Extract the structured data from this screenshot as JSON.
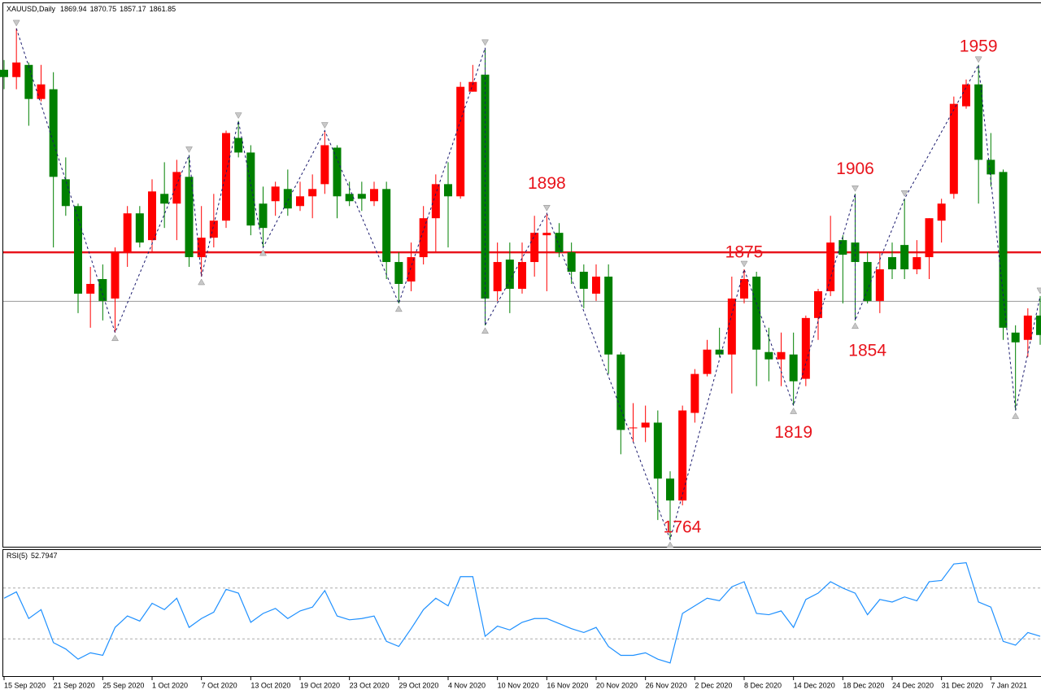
{
  "chart_data": {
    "type": "candlestick",
    "title": "XAUUSD,Daily",
    "quote": [
      1869.94,
      1870.75,
      1857.17,
      1861.85
    ],
    "categories": [
      "15 Sep 2020",
      null,
      null,
      null,
      "21 Sep 2020",
      null,
      null,
      null,
      "25 Sep 2020",
      null,
      null,
      null,
      "1 Oct 2020",
      null,
      null,
      null,
      "7 Oct 2020",
      null,
      null,
      null,
      "13 Oct 2020",
      null,
      null,
      null,
      "19 Oct 2020",
      null,
      null,
      null,
      "23 Oct 2020",
      null,
      null,
      null,
      "29 Oct 2020",
      null,
      null,
      null,
      "4 Nov 2020",
      null,
      null,
      null,
      "10 Nov 2020",
      null,
      null,
      null,
      "16 Nov 2020",
      null,
      null,
      null,
      "20 Nov 2020",
      null,
      null,
      null,
      "26 Nov 2020",
      null,
      null,
      null,
      "2 Dec 2020",
      null,
      null,
      null,
      "8 Dec 2020",
      null,
      null,
      null,
      "14 Dec 2020",
      null,
      null,
      null,
      "18 Dec 2020",
      null,
      null,
      null,
      "24 Dec 2020",
      null,
      null,
      null,
      "31 Dec 2020",
      null,
      null,
      null,
      "7 Jan 2021",
      null,
      null,
      null,
      null
    ],
    "open": [
      1957,
      1954,
      1959,
      1945,
      1949,
      1912,
      1901,
      1865,
      1871,
      1863,
      1882,
      1898,
      1887,
      1906,
      1902,
      1913,
      1880,
      1888,
      1895,
      1929,
      1923,
      1902,
      1903,
      1908,
      1901,
      1905,
      1910,
      1925,
      1906,
      1906,
      1903,
      1908,
      1878,
      1870,
      1880,
      1896,
      1910,
      1905,
      1948,
      1955,
      1866,
      1879,
      1867,
      1878,
      1889,
      1890,
      1882,
      1874,
      1865,
      1872,
      1840,
      1810,
      1810,
      1812,
      1789,
      1780,
      1816,
      1832,
      1842,
      1840,
      1863,
      1872,
      1841,
      1838,
      1840,
      1830,
      1855,
      1866,
      1887,
      1886,
      1878,
      1862,
      1880,
      1885,
      1875,
      1880,
      1895,
      1906,
      1942,
      1951,
      1920,
      1915,
      1849,
      1846,
      1856
    ],
    "high": [
      1961,
      1974,
      1960,
      1959,
      1956,
      1921,
      1902,
      1876,
      1877,
      1884,
      1901,
      1901,
      1912,
      1919,
      1920,
      1922,
      1901,
      1906,
      1932,
      1936,
      1926,
      1909,
      1911,
      1916,
      1911,
      1914,
      1932,
      1926,
      1911,
      1911,
      1911,
      1911,
      1882,
      1886,
      1901,
      1914,
      1919,
      1952,
      1959,
      1966,
      1886,
      1886,
      1886,
      1897,
      1898,
      1894,
      1886,
      1877,
      1877,
      1877,
      1841,
      1820,
      1819,
      1817,
      1792,
      1819,
      1834,
      1846,
      1851,
      1872,
      1875,
      1874,
      1851,
      1849,
      1849,
      1856,
      1867,
      1897,
      1889,
      1906,
      1882,
      1882,
      1886,
      1904,
      1887,
      1896,
      1904,
      1946,
      1953,
      1959,
      1931,
      1916,
      1852,
      1859,
      1864
    ],
    "low": [
      1949,
      1949,
      1934,
      1944,
      1884,
      1897,
      1857,
      1851,
      1854,
      1849,
      1876,
      1884,
      1882,
      1892,
      1887,
      1876,
      1872,
      1884,
      1892,
      1921,
      1889,
      1884,
      1897,
      1897,
      1899,
      1896,
      1906,
      1896,
      1901,
      1899,
      1901,
      1871,
      1861,
      1866,
      1877,
      1882,
      1884,
      1904,
      1948,
      1852,
      1862,
      1857,
      1865,
      1872,
      1866,
      1880,
      1869,
      1859,
      1862,
      1832,
      1799,
      1804,
      1804,
      1772,
      1764,
      1778,
      1812,
      1831,
      1839,
      1824,
      1861,
      1827,
      1829,
      1827,
      1819,
      1827,
      1846,
      1864,
      1861,
      1854,
      1861,
      1857,
      1871,
      1871,
      1873,
      1871,
      1886,
      1904,
      1941,
      1902,
      1909,
      1846,
      1817,
      1839,
      1844
    ],
    "close": [
      1954,
      1960,
      1945,
      1951,
      1913,
      1901,
      1865,
      1869,
      1862,
      1882,
      1898,
      1886,
      1907,
      1902,
      1915,
      1880,
      1888,
      1895,
      1931,
      1923,
      1893,
      1892,
      1909,
      1900,
      1905,
      1908,
      1926,
      1905,
      1903,
      1904,
      1908,
      1878,
      1869,
      1880,
      1896,
      1910,
      1905,
      1950,
      1952,
      1863,
      1878,
      1867,
      1878,
      1890,
      1890,
      1882,
      1874,
      1867,
      1872,
      1840,
      1809,
      1810,
      1812,
      1789,
      1780,
      1817,
      1832,
      1842,
      1840,
      1863,
      1871,
      1842,
      1838,
      1841,
      1829,
      1855,
      1866,
      1886,
      1881,
      1878,
      1862,
      1875,
      1875,
      1875,
      1880,
      1896,
      1902,
      1943,
      1951,
      1920,
      1914,
      1851,
      1845,
      1856,
      1848
    ],
    "up_color": "#ff0000",
    "down_color": "#008000",
    "ylim": [
      1761,
      1984
    ],
    "hlines": [
      {
        "value": 1882,
        "color": "#e8141c"
      },
      {
        "value": 1861.85,
        "color": "#9a9a9a"
      }
    ],
    "annotations": [
      1898,
      1875,
      1906,
      1959,
      1854,
      1819,
      1764
    ],
    "annotation_color": "#e8141c",
    "rsi": {
      "label": "RSI(5)",
      "current": 52.7947,
      "color": "#1e90ff",
      "ylim": [
        0,
        100
      ],
      "levels": [
        70,
        30
      ],
      "values": [
        62,
        67,
        46,
        53,
        27,
        22,
        14,
        19,
        17,
        39,
        48,
        44,
        58,
        53,
        62,
        39,
        46,
        51,
        69,
        66,
        43,
        50,
        54,
        46,
        52,
        55,
        68,
        48,
        45,
        46,
        48,
        28,
        24,
        38,
        53,
        62,
        56,
        79,
        79,
        32,
        40,
        37,
        43,
        46,
        46,
        42,
        38,
        35,
        39,
        24,
        17,
        17,
        19,
        14,
        11,
        50,
        56,
        62,
        60,
        71,
        75,
        50,
        49,
        52,
        39,
        61,
        66,
        75,
        70,
        66,
        49,
        61,
        59,
        63,
        60,
        75,
        76,
        89,
        90,
        59,
        55,
        28,
        25,
        35,
        32
      ]
    }
  }
}
